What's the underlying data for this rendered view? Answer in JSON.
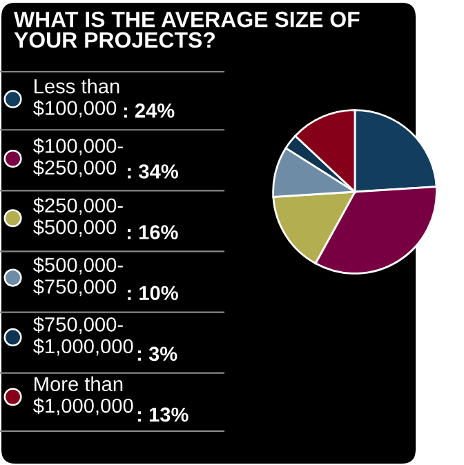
{
  "chart_data": {
    "type": "pie",
    "title": "WHAT IS THE AVERAGE SIZE OF\nYOUR PROJECTS?",
    "categories": [
      "Less than\n$100,000",
      "$100,000-\n$250,000",
      "$250,000-\n$500,000",
      "$500,000-\n$750,000",
      "$750,000-\n$1,000,000",
      "More than\n$1,000,000"
    ],
    "values": [
      24,
      34,
      16,
      10,
      3,
      13
    ],
    "value_labels": [
      ": 24%",
      ": 34%",
      ": 16%",
      ": 10%",
      ": 3%",
      ": 13%"
    ],
    "colors": [
      "#123d5e",
      "#780042",
      "#b3ae50",
      "#6f8ca6",
      "#0f3552",
      "#87001a"
    ],
    "legend": "left"
  }
}
